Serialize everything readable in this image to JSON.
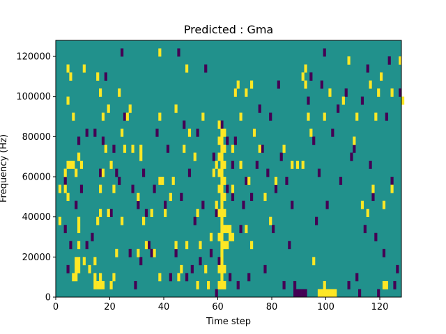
{
  "chart_data": {
    "type": "heatmap",
    "title": "Predicted : Gma",
    "xlabel": "Time step",
    "ylabel": "Frequency (Hz)",
    "xlim": [
      0,
      128
    ],
    "ylim": [
      0,
      128000
    ],
    "xticks": [
      0,
      20,
      40,
      60,
      80,
      100,
      120
    ],
    "xtick_labels": [
      "0",
      "20",
      "40",
      "60",
      "80",
      "100",
      "120"
    ],
    "yticks": [
      0,
      20000,
      40000,
      60000,
      80000,
      100000,
      120000
    ],
    "ytick_labels": [
      "0",
      "20000",
      "40000",
      "60000",
      "80000",
      "100000",
      "120000"
    ],
    "grid": false,
    "background_value": 0,
    "bin_height_hz": 4000,
    "colors": {
      "low": "#440154",
      "mid": "#21918c",
      "high": "#fde725"
    },
    "cells": {
      "high": [
        [
          1,
          9
        ],
        [
          1,
          13
        ],
        [
          3,
          13
        ],
        [
          3,
          15
        ],
        [
          4,
          12
        ],
        [
          4,
          16
        ],
        [
          4,
          24
        ],
        [
          4,
          28
        ],
        [
          5,
          16
        ],
        [
          5,
          27
        ],
        [
          6,
          2
        ],
        [
          6,
          16
        ],
        [
          6,
          22
        ],
        [
          7,
          2
        ],
        [
          7,
          3
        ],
        [
          7,
          4
        ],
        [
          7,
          15
        ],
        [
          8,
          3
        ],
        [
          8,
          4
        ],
        [
          8,
          6
        ],
        [
          8,
          8
        ],
        [
          8,
          9
        ],
        [
          8,
          17
        ],
        [
          9,
          16
        ],
        [
          10,
          4
        ],
        [
          10,
          28
        ],
        [
          12,
          3
        ],
        [
          14,
          1
        ],
        [
          14,
          2
        ],
        [
          14,
          4
        ],
        [
          15,
          1
        ],
        [
          15,
          9
        ],
        [
          15,
          27
        ],
        [
          16,
          1
        ],
        [
          16,
          2
        ],
        [
          16,
          10
        ],
        [
          16,
          13
        ],
        [
          16,
          25
        ],
        [
          17,
          1
        ],
        [
          17,
          15
        ],
        [
          17,
          22
        ],
        [
          18,
          18
        ],
        [
          19,
          10
        ],
        [
          19,
          23
        ],
        [
          20,
          1
        ],
        [
          20,
          16
        ],
        [
          21,
          2
        ],
        [
          21,
          13
        ],
        [
          22,
          5
        ],
        [
          23,
          25
        ],
        [
          24,
          9
        ],
        [
          24,
          20
        ],
        [
          25,
          18
        ],
        [
          26,
          22
        ],
        [
          27,
          23
        ],
        [
          28,
          18
        ],
        [
          30,
          5
        ],
        [
          30,
          12
        ],
        [
          31,
          17
        ],
        [
          31,
          18
        ],
        [
          32,
          9
        ],
        [
          33,
          6
        ],
        [
          35,
          10
        ],
        [
          36,
          5
        ],
        [
          38,
          2
        ],
        [
          38,
          14
        ],
        [
          38,
          22
        ],
        [
          38,
          30
        ],
        [
          39,
          14
        ],
        [
          40,
          10
        ],
        [
          42,
          12
        ],
        [
          43,
          14
        ],
        [
          44,
          6
        ],
        [
          44,
          23
        ],
        [
          45,
          2
        ],
        [
          46,
          3
        ],
        [
          47,
          18
        ],
        [
          48,
          6
        ],
        [
          48,
          28
        ],
        [
          49,
          20
        ],
        [
          51,
          17
        ],
        [
          52,
          1
        ],
        [
          52,
          10
        ],
        [
          53,
          6
        ],
        [
          54,
          22
        ],
        [
          55,
          3
        ],
        [
          56,
          1
        ],
        [
          57,
          7
        ],
        [
          58,
          15
        ],
        [
          59,
          11
        ],
        [
          59,
          16
        ],
        [
          60,
          1
        ],
        [
          60,
          3
        ],
        [
          60,
          7
        ],
        [
          60,
          10
        ],
        [
          60,
          13
        ],
        [
          60,
          15
        ],
        [
          60,
          17
        ],
        [
          60,
          19
        ],
        [
          60,
          21
        ],
        [
          61,
          1
        ],
        [
          61,
          2
        ],
        [
          61,
          3
        ],
        [
          61,
          4
        ],
        [
          61,
          5
        ],
        [
          61,
          6
        ],
        [
          61,
          7
        ],
        [
          61,
          8
        ],
        [
          61,
          9
        ],
        [
          61,
          10
        ],
        [
          61,
          11
        ],
        [
          61,
          12
        ],
        [
          61,
          13
        ],
        [
          61,
          14
        ],
        [
          61,
          15
        ],
        [
          61,
          16
        ],
        [
          61,
          17
        ],
        [
          61,
          18
        ],
        [
          61,
          19
        ],
        [
          61,
          20
        ],
        [
          62,
          1
        ],
        [
          62,
          3
        ],
        [
          62,
          6
        ],
        [
          62,
          8
        ],
        [
          62,
          10
        ],
        [
          62,
          12
        ],
        [
          62,
          14
        ],
        [
          62,
          16
        ],
        [
          62,
          18
        ],
        [
          62,
          20
        ],
        [
          63,
          6
        ],
        [
          63,
          8
        ],
        [
          64,
          7
        ],
        [
          64,
          8
        ],
        [
          65,
          7
        ],
        [
          65,
          13
        ],
        [
          65,
          18
        ],
        [
          66,
          25
        ],
        [
          67,
          26
        ],
        [
          68,
          16
        ],
        [
          68,
          22
        ],
        [
          70,
          8
        ],
        [
          70,
          25
        ],
        [
          71,
          14
        ],
        [
          72,
          6
        ],
        [
          72,
          26
        ],
        [
          73,
          20
        ],
        [
          75,
          18
        ],
        [
          77,
          12
        ],
        [
          79,
          9
        ],
        [
          81,
          14
        ],
        [
          84,
          18
        ],
        [
          87,
          16
        ],
        [
          89,
          16
        ],
        [
          91,
          16
        ],
        [
          91,
          27
        ],
        [
          92,
          26
        ],
        [
          92,
          28
        ],
        [
          93,
          22
        ],
        [
          94,
          20
        ],
        [
          95,
          4
        ],
        [
          97,
          0
        ],
        [
          98,
          0
        ],
        [
          99,
          0
        ],
        [
          99,
          1
        ],
        [
          100,
          0
        ],
        [
          101,
          0
        ],
        [
          102,
          0
        ],
        [
          103,
          0
        ],
        [
          99,
          22
        ],
        [
          101,
          25
        ],
        [
          106,
          24
        ],
        [
          108,
          29
        ],
        [
          110,
          19
        ],
        [
          111,
          22
        ],
        [
          113,
          11
        ],
        [
          115,
          10
        ],
        [
          116,
          26
        ],
        [
          117,
          13
        ],
        [
          118,
          22
        ],
        [
          119,
          25
        ],
        [
          120,
          27
        ],
        [
          121,
          11
        ],
        [
          121,
          1
        ],
        [
          122,
          1
        ],
        [
          124,
          13
        ],
        [
          124,
          25
        ],
        [
          127,
          29
        ],
        [
          128,
          24
        ]
      ],
      "low": [
        [
          3,
          8
        ],
        [
          3,
          14
        ],
        [
          4,
          3
        ],
        [
          5,
          6
        ],
        [
          7,
          11
        ],
        [
          8,
          19
        ],
        [
          9,
          13
        ],
        [
          11,
          20
        ],
        [
          11,
          6
        ],
        [
          13,
          7
        ],
        [
          14,
          20
        ],
        [
          16,
          15
        ],
        [
          17,
          19
        ],
        [
          18,
          27
        ],
        [
          20,
          10
        ],
        [
          21,
          18
        ],
        [
          22,
          15
        ],
        [
          23,
          14
        ],
        [
          24,
          30
        ],
        [
          25,
          22
        ],
        [
          27,
          5
        ],
        [
          28,
          13
        ],
        [
          29,
          1
        ],
        [
          30,
          11
        ],
        [
          31,
          4
        ],
        [
          32,
          15
        ],
        [
          33,
          10
        ],
        [
          34,
          6
        ],
        [
          35,
          5
        ],
        [
          36,
          13
        ],
        [
          37,
          20
        ],
        [
          38,
          14
        ],
        [
          40,
          11
        ],
        [
          41,
          18
        ],
        [
          42,
          2
        ],
        [
          44,
          5
        ],
        [
          45,
          30
        ],
        [
          46,
          12
        ],
        [
          47,
          21
        ],
        [
          48,
          2
        ],
        [
          49,
          15
        ],
        [
          50,
          3
        ],
        [
          51,
          9
        ],
        [
          52,
          20
        ],
        [
          53,
          4
        ],
        [
          54,
          11
        ],
        [
          55,
          28
        ],
        [
          56,
          1
        ],
        [
          57,
          5
        ],
        [
          58,
          17
        ],
        [
          59,
          0
        ],
        [
          59,
          10
        ],
        [
          60,
          4
        ],
        [
          61,
          21
        ],
        [
          63,
          13
        ],
        [
          63,
          19
        ],
        [
          64,
          2
        ],
        [
          65,
          12
        ],
        [
          65,
          16
        ],
        [
          66,
          19
        ],
        [
          66,
          25
        ],
        [
          67,
          1
        ],
        [
          68,
          8
        ],
        [
          69,
          11
        ],
        [
          70,
          14
        ],
        [
          71,
          2
        ],
        [
          72,
          12
        ],
        [
          73,
          20
        ],
        [
          74,
          16
        ],
        [
          75,
          23
        ],
        [
          76,
          18
        ],
        [
          77,
          3
        ],
        [
          78,
          15
        ],
        [
          79,
          22
        ],
        [
          80,
          8
        ],
        [
          81,
          13
        ],
        [
          82,
          26
        ],
        [
          83,
          17
        ],
        [
          84,
          1
        ],
        [
          85,
          14
        ],
        [
          86,
          6
        ],
        [
          87,
          11
        ],
        [
          88,
          0
        ],
        [
          88,
          1
        ],
        [
          89,
          0
        ],
        [
          90,
          0
        ],
        [
          91,
          0
        ],
        [
          92,
          0
        ],
        [
          93,
          24
        ],
        [
          94,
          27
        ],
        [
          95,
          19
        ],
        [
          96,
          9
        ],
        [
          97,
          15
        ],
        [
          98,
          26
        ],
        [
          99,
          30
        ],
        [
          100,
          11
        ],
        [
          102,
          20
        ],
        [
          104,
          23
        ],
        [
          105,
          14
        ],
        [
          107,
          25
        ],
        [
          108,
          1
        ],
        [
          109,
          17
        ],
        [
          110,
          18
        ],
        [
          111,
          2
        ],
        [
          112,
          0
        ],
        [
          113,
          24
        ],
        [
          114,
          8
        ],
        [
          115,
          28
        ],
        [
          116,
          16
        ],
        [
          117,
          12
        ],
        [
          118,
          7
        ],
        [
          119,
          0
        ],
        [
          120,
          27
        ],
        [
          121,
          5
        ],
        [
          122,
          22
        ],
        [
          123,
          29
        ],
        [
          124,
          14
        ],
        [
          125,
          1
        ],
        [
          126,
          3
        ],
        [
          127,
          25
        ]
      ]
    }
  }
}
